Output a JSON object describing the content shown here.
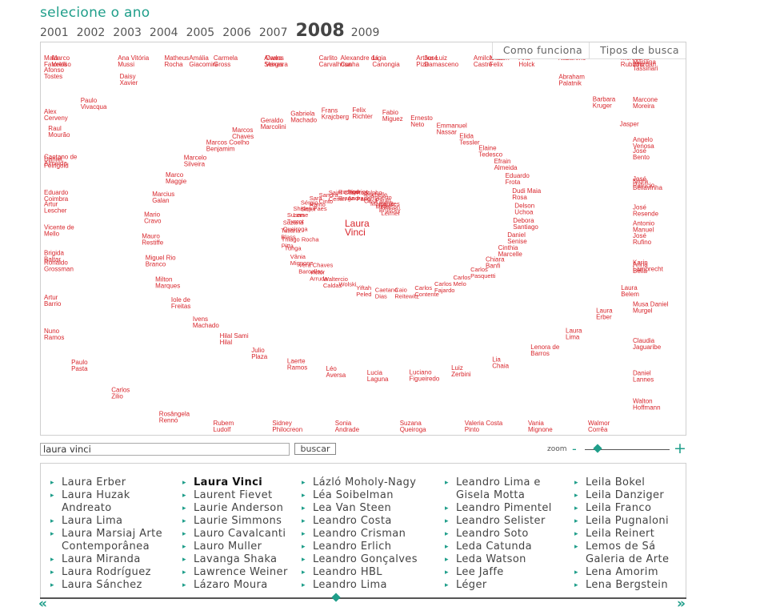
{
  "header": {
    "title": "selecione o ano",
    "years": [
      "2001",
      "2002",
      "2003",
      "2004",
      "2005",
      "2006",
      "2007",
      "2008",
      "2009"
    ],
    "selected_year": "2008"
  },
  "viz": {
    "how_it_works": "Como funciona",
    "search_types": "Tipos de busca",
    "name_color": "#d8262c",
    "focus_name": "Laura Vinci",
    "names": [
      "Nelson Leirner",
      "Paulo Bruscky",
      "Paulo Meira",
      "Roberto Magalhães",
      "Rochelle Costi",
      "Rodolpho Parigi",
      "Rodrigo Andrade",
      "Rodrigo Braga",
      "Saint Clair Cemin",
      "Sandra Cinto",
      "Sara Ramo",
      "Sérgio Sister",
      "Shirley Paes Leme",
      "Susan Turcot",
      "Suzana Queiroga",
      "Tatiana Blass",
      "Thiago Rocha Pitta",
      "Tunga",
      "Vânia Mignone",
      "Vera Chaves Barcellos",
      "Victor Arruda",
      "Waltercio Caldas",
      "Wolski",
      "Yiftah Peled",
      "Caetano Dias",
      "Caio Reitewitz",
      "Carlos Contente",
      "Carlos Fajardo",
      "Carlos Melo",
      "Carlos Pasquetti",
      "Chiara Banfi",
      "Cinthia Marcelle",
      "Daniel Senise",
      "Debora Santiago",
      "Delson Uchoa",
      "Dudi Maia Rosa",
      "Eduardo Frota",
      "Efrain Almeida",
      "Elaine Tedesco",
      "Elida Tessler",
      "Emmanuel Nassar",
      "Ernesto Neto",
      "Fabio Miguez",
      "Felix Richter",
      "Frans Krajcberg",
      "Gabriela Machado",
      "Geraldo Marcolini",
      "Marcos Chaves",
      "Marcos Coelho Benjamim",
      "Marcelo Silveira",
      "Marco Maggie",
      "Marcius Galan",
      "Mario Cravo",
      "Mauro Restiffe",
      "Miguel Rio Branco",
      "Milton Marques",
      "Iole de Freitas",
      "Ivens Machado",
      "Hilal Sami Hilal",
      "Julio Plaza",
      "Laerte Ramos",
      "Léo Aversa",
      "Lucia Laguna",
      "Luciano Figueiredo",
      "Luiz Zerbini",
      "Lia Chaia",
      "Lenora de Barros",
      "Laura Lima",
      "Laura Erber",
      "Laura Belem",
      "Karin Lambrecht",
      "José Rufino",
      "José Resende",
      "José Patrício",
      "José Bento",
      "Jasper",
      "Barbara Kruger",
      "Abraham Palatnik",
      "Ana Holck",
      "Amilcar de Castro",
      "José Damasceno",
      "Lígia Canongia",
      "Carlito Carvalhosa",
      "Carlos Vergara",
      "Carmela Gross",
      "Matheus Rocha",
      "Daisy Xavier",
      "Paulo Vivacqua",
      "Raul Mourão",
      "Daniel Feingold",
      "Eduardo Coimbra",
      "Vicente de Mello",
      "Ronaldo Grossman",
      "Artur Barrio",
      "Nuno Ramos",
      "Paulo Pasta",
      "Carlos Zilio",
      "Rosângela Rennó",
      "Rubem Ludolf",
      "Sidney Philocreon",
      "Sonia Andrade",
      "Suzana Queiroga",
      "Valeria Costa Pinto",
      "Vania Mignone",
      "Walmor Corrêa",
      "Walton Hoffmann",
      "Daniel Lannes",
      "Claudia Jaguaribe",
      "Musa Daniel Murgel",
      "Anna Bella",
      "Antonio Manuel",
      "Niura Bellavinha",
      "Angelo Venosa",
      "Marcone Moreira",
      "Mariana Tassinari",
      "Marta Jourdan",
      "Mônica Rubinho",
      "Nazareno",
      "Nelson Felix",
      "Arthur Luiz Piza",
      "Alexandre da Cunha",
      "Alvaro Seixas",
      "Amália Giacomini",
      "Ana Vitória Mussi",
      "Marco Veloso",
      "Malu Fatorelli",
      "Afonso Tostes",
      "Alex Cerveny",
      "Caetano de Almeida",
      "Artur Lescher",
      "Brigida Baltar"
    ]
  },
  "search": {
    "value": "laura vinci",
    "button": "buscar",
    "zoom_label": "zoom",
    "zoom_minus": "-",
    "zoom_plus": "+",
    "zoom_level": 0.15
  },
  "list": {
    "columns": [
      [
        {
          "label": "Laura Erber"
        },
        {
          "label": "Laura Huzak"
        },
        {
          "label": "Andreato",
          "cont": true
        },
        {
          "label": "Laura Lima"
        },
        {
          "label": "Laura Marsiaj Arte"
        },
        {
          "label": "Contemporânea",
          "cont": true
        },
        {
          "label": "Laura Miranda"
        },
        {
          "label": "Laura Rodríguez"
        },
        {
          "label": "Laura Sánchez"
        }
      ],
      [
        {
          "label": "Laura Vinci",
          "bold": true
        },
        {
          "label": "Laurent Fievet"
        },
        {
          "label": "Laurie Anderson"
        },
        {
          "label": "Laurie Simmons"
        },
        {
          "label": "Lauro Cavalcanti"
        },
        {
          "label": "Lauro Muller"
        },
        {
          "label": "Lavanga Shaka"
        },
        {
          "label": "Lawrence Weiner"
        },
        {
          "label": "Lázaro Moura"
        }
      ],
      [
        {
          "label": "Lázló Moholy-Nagy"
        },
        {
          "label": "Léa Soibelman"
        },
        {
          "label": "Lea Van Steen"
        },
        {
          "label": "Leandro Costa"
        },
        {
          "label": "Leandro Crisman"
        },
        {
          "label": "Leandro Erlich"
        },
        {
          "label": "Leandro Gonçalves"
        },
        {
          "label": "Leandro HBL"
        },
        {
          "label": "Leandro Lima"
        }
      ],
      [
        {
          "label": "Leandro Lima e"
        },
        {
          "label": "Gisela Motta",
          "cont": true
        },
        {
          "label": "Leandro Pimentel"
        },
        {
          "label": "Leandro Selister"
        },
        {
          "label": "Leandro Soto"
        },
        {
          "label": "Leda Catunda"
        },
        {
          "label": "Leda Watson"
        },
        {
          "label": "Lee Jaffe"
        },
        {
          "label": "Léger"
        }
      ],
      [
        {
          "label": "Leila Bokel"
        },
        {
          "label": "Leila Danziger"
        },
        {
          "label": "Leila Franco"
        },
        {
          "label": "Leila Pugnaloni"
        },
        {
          "label": "Leila Reinert"
        },
        {
          "label": "Lemos de Sá"
        },
        {
          "label": "Galeria de Arte",
          "cont": true
        },
        {
          "label": "Lena Amorim"
        },
        {
          "label": "Lena Bergstein"
        }
      ]
    ],
    "scroll_left": "«",
    "scroll_right": "»",
    "scroll_position": 0.45
  }
}
